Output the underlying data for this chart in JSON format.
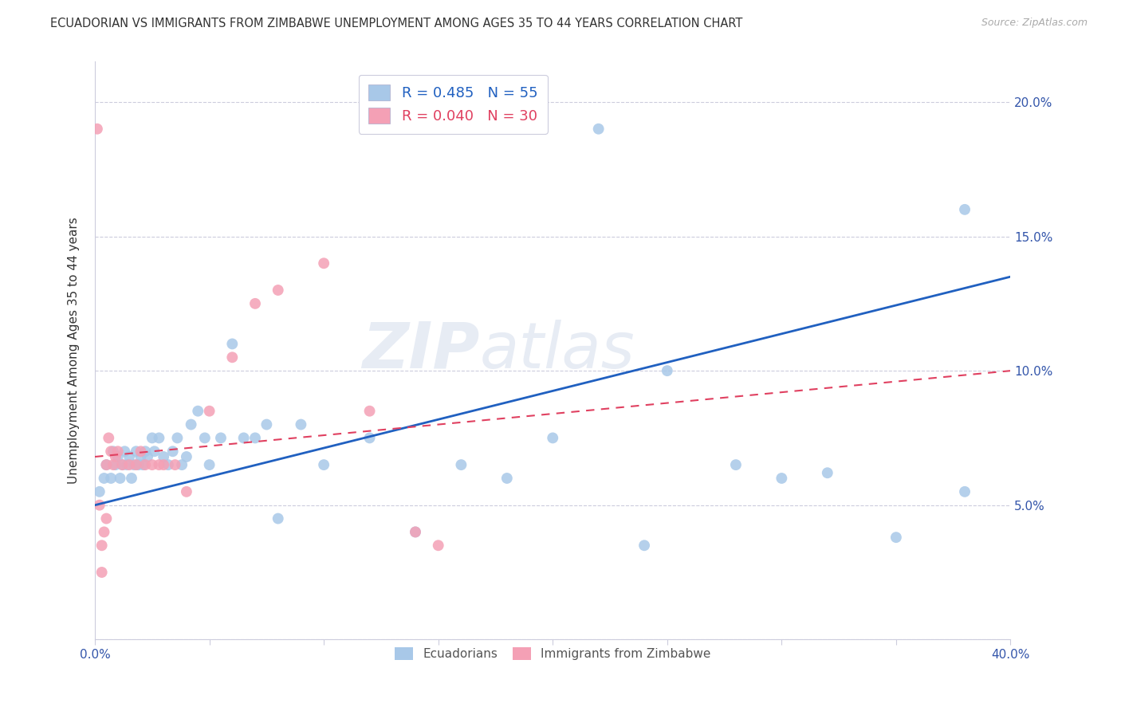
{
  "title": "ECUADORIAN VS IMMIGRANTS FROM ZIMBABWE UNEMPLOYMENT AMONG AGES 35 TO 44 YEARS CORRELATION CHART",
  "source": "Source: ZipAtlas.com",
  "ylabel": "Unemployment Among Ages 35 to 44 years",
  "x_min": 0.0,
  "x_max": 0.4,
  "y_min": 0.0,
  "y_max": 0.215,
  "x_ticks": [
    0.0,
    0.05,
    0.1,
    0.15,
    0.2,
    0.25,
    0.3,
    0.35,
    0.4
  ],
  "y_ticks": [
    0.0,
    0.05,
    0.1,
    0.15,
    0.2
  ],
  "blue_R": 0.485,
  "blue_N": 55,
  "pink_R": 0.04,
  "pink_N": 30,
  "blue_color": "#a8c8e8",
  "pink_color": "#f4a0b5",
  "blue_line_color": "#2060c0",
  "pink_line_color": "#e04060",
  "watermark_zip": "ZIP",
  "watermark_atlas": "atlas",
  "legend_labels": [
    "Ecuadorians",
    "Immigrants from Zimbabwe"
  ],
  "blue_scatter_x": [
    0.002,
    0.004,
    0.005,
    0.007,
    0.008,
    0.009,
    0.01,
    0.011,
    0.012,
    0.013,
    0.014,
    0.015,
    0.016,
    0.017,
    0.018,
    0.019,
    0.02,
    0.021,
    0.022,
    0.023,
    0.025,
    0.026,
    0.028,
    0.03,
    0.032,
    0.034,
    0.036,
    0.038,
    0.04,
    0.042,
    0.045,
    0.048,
    0.05,
    0.055,
    0.06,
    0.065,
    0.07,
    0.075,
    0.08,
    0.09,
    0.1,
    0.12,
    0.14,
    0.16,
    0.18,
    0.2,
    0.22,
    0.24,
    0.25,
    0.28,
    0.3,
    0.32,
    0.35,
    0.38,
    0.38
  ],
  "blue_scatter_y": [
    0.055,
    0.06,
    0.065,
    0.06,
    0.07,
    0.065,
    0.068,
    0.06,
    0.065,
    0.07,
    0.065,
    0.068,
    0.06,
    0.065,
    0.07,
    0.065,
    0.068,
    0.065,
    0.07,
    0.068,
    0.075,
    0.07,
    0.075,
    0.068,
    0.065,
    0.07,
    0.075,
    0.065,
    0.068,
    0.08,
    0.085,
    0.075,
    0.065,
    0.075,
    0.11,
    0.075,
    0.075,
    0.08,
    0.045,
    0.08,
    0.065,
    0.075,
    0.04,
    0.065,
    0.06,
    0.075,
    0.19,
    0.035,
    0.1,
    0.065,
    0.06,
    0.062,
    0.038,
    0.16,
    0.055
  ],
  "pink_scatter_x": [
    0.001,
    0.002,
    0.003,
    0.003,
    0.004,
    0.005,
    0.005,
    0.006,
    0.007,
    0.008,
    0.009,
    0.01,
    0.012,
    0.015,
    0.018,
    0.02,
    0.022,
    0.025,
    0.028,
    0.03,
    0.035,
    0.04,
    0.05,
    0.06,
    0.07,
    0.08,
    0.1,
    0.12,
    0.14,
    0.15
  ],
  "pink_scatter_y": [
    0.19,
    0.05,
    0.035,
    0.025,
    0.04,
    0.065,
    0.045,
    0.075,
    0.07,
    0.065,
    0.068,
    0.07,
    0.065,
    0.065,
    0.065,
    0.07,
    0.065,
    0.065,
    0.065,
    0.065,
    0.065,
    0.055,
    0.085,
    0.105,
    0.125,
    0.13,
    0.14,
    0.085,
    0.04,
    0.035
  ],
  "blue_trend_x": [
    0.0,
    0.4
  ],
  "blue_trend_y": [
    0.05,
    0.135
  ],
  "pink_trend_x": [
    0.0,
    0.4
  ],
  "pink_trend_y": [
    0.068,
    0.1
  ]
}
